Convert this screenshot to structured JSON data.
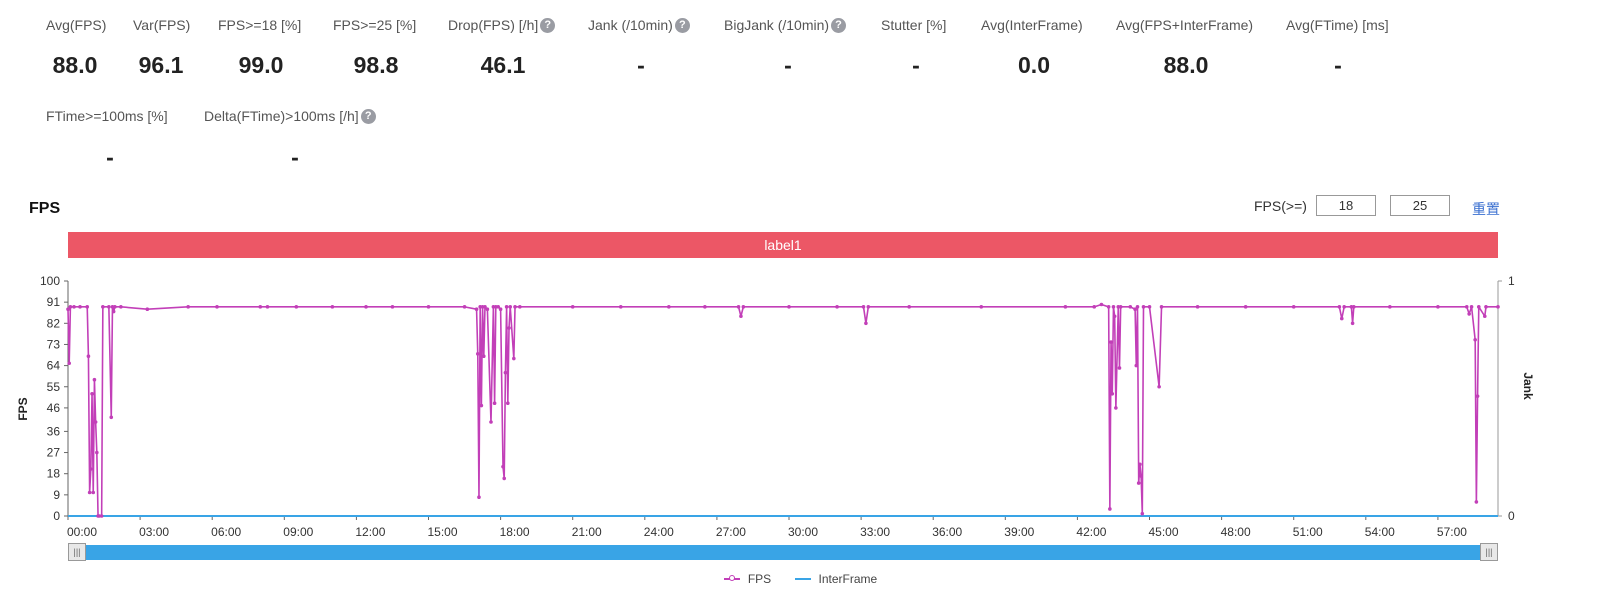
{
  "stats_row1": [
    {
      "label": "Avg(FPS)",
      "value": "88.0",
      "help": false
    },
    {
      "label": "Var(FPS)",
      "value": "96.1",
      "help": false
    },
    {
      "label": "FPS>=18 [%]",
      "value": "99.0",
      "help": false
    },
    {
      "label": "FPS>=25 [%]",
      "value": "98.8",
      "help": false
    },
    {
      "label": "Drop(FPS) [/h]",
      "value": "46.1",
      "help": true
    },
    {
      "label": "Jank (/10min)",
      "value": "-",
      "help": true
    },
    {
      "label": "BigJank (/10min)",
      "value": "-",
      "help": true
    },
    {
      "label": "Stutter [%]",
      "value": "-",
      "help": false
    },
    {
      "label": "Avg(InterFrame)",
      "value": "0.0",
      "help": false
    },
    {
      "label": "Avg(FPS+InterFrame)",
      "value": "88.0",
      "help": false
    },
    {
      "label": "Avg(FTime) [ms]",
      "value": "-",
      "help": false
    }
  ],
  "stats_row2": [
    {
      "label": "FTime>=100ms [%]",
      "value": "-",
      "help": false
    },
    {
      "label": "Delta(FTime)>100ms [/h]",
      "value": "-",
      "help": true
    }
  ],
  "help_glyph": "?",
  "threshold": {
    "label": "FPS(>=)",
    "low": "18",
    "high": "25",
    "reset_label": "重置"
  },
  "label_bar": "label1",
  "colors": {
    "fps": "#c23fb8",
    "interframe": "#39a4e6",
    "label_bar": "#ec5766"
  },
  "icons": {
    "help": "question-circle-icon",
    "slider_handle": "grip-icon"
  },
  "chart_data": {
    "type": "line",
    "title": "FPS",
    "ylabel": "FPS",
    "y2label": "Jank",
    "ylim": [
      0,
      100
    ],
    "y2lim": [
      0,
      1
    ],
    "yticks": [
      0,
      9,
      18,
      27,
      36,
      46,
      55,
      64,
      73,
      82,
      91,
      100
    ],
    "y2ticks": [
      0,
      1
    ],
    "xlim": [
      0,
      59.5
    ],
    "x_unit": "minutes",
    "xticks": [
      "00:00",
      "03:00",
      "06:00",
      "09:00",
      "12:00",
      "15:00",
      "18:00",
      "21:00",
      "24:00",
      "27:00",
      "30:00",
      "33:00",
      "36:00",
      "39:00",
      "42:00",
      "45:00",
      "48:00",
      "51:00",
      "54:00",
      "57:00"
    ],
    "legend": [
      "FPS",
      "InterFrame"
    ],
    "legend_position": "bottom",
    "grid": false,
    "series": [
      {
        "name": "FPS",
        "points": [
          [
            0,
            88
          ],
          [
            0.05,
            65
          ],
          [
            0.1,
            89
          ],
          [
            0.25,
            89
          ],
          [
            0.5,
            89
          ],
          [
            0.8,
            89
          ],
          [
            0.85,
            68
          ],
          [
            0.9,
            10
          ],
          [
            0.95,
            20
          ],
          [
            1.0,
            52
          ],
          [
            1.05,
            10
          ],
          [
            1.1,
            58
          ],
          [
            1.15,
            40
          ],
          [
            1.2,
            27
          ],
          [
            1.25,
            0
          ],
          [
            1.3,
            0
          ],
          [
            1.4,
            0
          ],
          [
            1.45,
            89
          ],
          [
            1.7,
            89
          ],
          [
            1.8,
            42
          ],
          [
            1.85,
            89
          ],
          [
            1.9,
            87
          ],
          [
            1.95,
            89
          ],
          [
            2.2,
            89
          ],
          [
            3.3,
            88
          ],
          [
            5,
            89
          ],
          [
            6.2,
            89
          ],
          [
            8,
            89
          ],
          [
            8.3,
            89
          ],
          [
            9.5,
            89
          ],
          [
            11,
            89
          ],
          [
            12.4,
            89
          ],
          [
            13.5,
            89
          ],
          [
            15.0,
            89
          ],
          [
            16.5,
            89
          ],
          [
            17.0,
            88
          ],
          [
            17.05,
            69
          ],
          [
            17.1,
            8
          ],
          [
            17.15,
            89
          ],
          [
            17.2,
            47
          ],
          [
            17.25,
            89
          ],
          [
            17.3,
            68
          ],
          [
            17.35,
            89
          ],
          [
            17.45,
            88
          ],
          [
            17.6,
            40
          ],
          [
            17.7,
            89
          ],
          [
            17.75,
            48
          ],
          [
            17.8,
            89
          ],
          [
            17.9,
            89
          ],
          [
            18.0,
            88
          ],
          [
            18.1,
            21
          ],
          [
            18.15,
            16
          ],
          [
            18.2,
            61
          ],
          [
            18.25,
            89
          ],
          [
            18.3,
            48
          ],
          [
            18.35,
            80
          ],
          [
            18.4,
            89
          ],
          [
            18.55,
            67
          ],
          [
            18.6,
            89
          ],
          [
            18.8,
            89
          ],
          [
            21,
            89
          ],
          [
            23,
            89
          ],
          [
            25,
            89
          ],
          [
            26.5,
            89
          ],
          [
            27.9,
            89
          ],
          [
            28.0,
            85
          ],
          [
            28.1,
            89
          ],
          [
            30,
            89
          ],
          [
            32,
            89
          ],
          [
            33.1,
            89
          ],
          [
            33.2,
            82
          ],
          [
            33.3,
            89
          ],
          [
            35,
            89
          ],
          [
            38,
            89
          ],
          [
            41.5,
            89
          ],
          [
            42.7,
            89
          ],
          [
            43.0,
            90
          ],
          [
            43.3,
            89
          ],
          [
            43.35,
            3
          ],
          [
            43.4,
            74
          ],
          [
            43.45,
            52
          ],
          [
            43.5,
            89
          ],
          [
            43.55,
            85
          ],
          [
            43.6,
            46
          ],
          [
            43.7,
            89
          ],
          [
            43.75,
            63
          ],
          [
            43.8,
            89
          ],
          [
            44.2,
            89
          ],
          [
            44.4,
            88
          ],
          [
            44.45,
            64
          ],
          [
            44.5,
            89
          ],
          [
            44.55,
            14
          ],
          [
            44.6,
            22
          ],
          [
            44.65,
            17
          ],
          [
            44.7,
            1
          ],
          [
            44.75,
            89
          ],
          [
            45.0,
            89
          ],
          [
            45.4,
            55
          ],
          [
            45.5,
            89
          ],
          [
            47,
            89
          ],
          [
            49,
            89
          ],
          [
            51,
            89
          ],
          [
            52.9,
            89
          ],
          [
            53.0,
            84
          ],
          [
            53.1,
            89
          ],
          [
            53.4,
            89
          ],
          [
            53.45,
            82
          ],
          [
            53.5,
            89
          ],
          [
            55,
            89
          ],
          [
            57,
            89
          ],
          [
            58.2,
            89
          ],
          [
            58.3,
            86
          ],
          [
            58.4,
            89
          ],
          [
            58.55,
            75
          ],
          [
            58.6,
            6
          ],
          [
            58.65,
            51
          ],
          [
            58.7,
            89
          ],
          [
            58.95,
            85
          ],
          [
            59.0,
            89
          ],
          [
            59.5,
            89
          ]
        ]
      },
      {
        "name": "InterFrame",
        "points": [
          [
            0,
            0
          ],
          [
            59.5,
            0
          ]
        ]
      }
    ]
  }
}
